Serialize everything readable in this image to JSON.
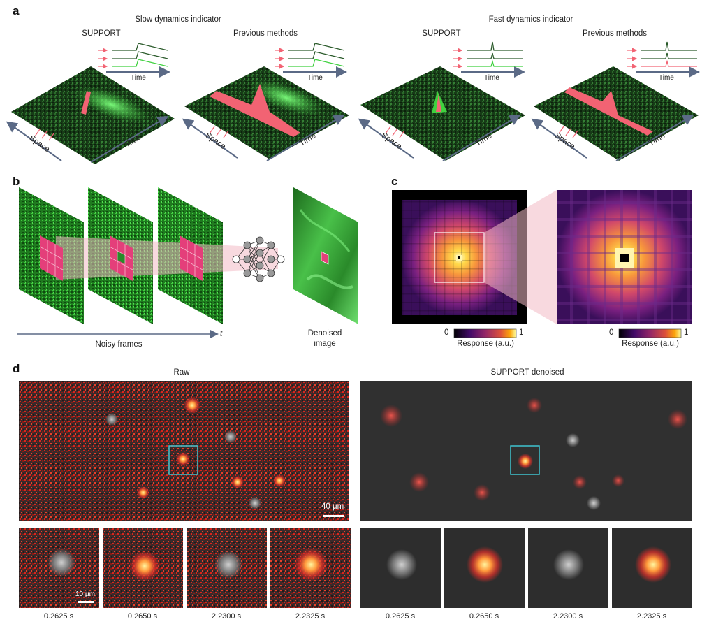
{
  "panels": {
    "a": {
      "letter": "a",
      "groups": [
        {
          "title": "Slow dynamics indicator",
          "left_label": "SUPPORT",
          "right_label": "Previous methods"
        },
        {
          "title": "Fast dynamics indicator",
          "left_label": "SUPPORT",
          "right_label": "Previous methods"
        }
      ],
      "axis_time": "Time",
      "axis_space": "Space",
      "trace_axis": "Time"
    },
    "b": {
      "letter": "b",
      "noisy_label": "Noisy frames",
      "t_label": "t",
      "denoised_label": "Denoised image"
    },
    "c": {
      "letter": "c",
      "colorbar_min": "0",
      "colorbar_max": "1",
      "colorbar_label": "Response (a.u.)"
    },
    "d": {
      "letter": "d",
      "raw_title": "Raw",
      "denoised_title": "SUPPORT denoised",
      "scale_large": "40 μm",
      "scale_small": "10 μm",
      "times": [
        "0.2625 s",
        "0.2650 s",
        "2.2300 s",
        "2.2325 s"
      ]
    }
  },
  "colors": {
    "green_signal": "#3fd13f",
    "red_signal": "#f26373",
    "arrow_gray": "#5b6a86",
    "cyan_box": "#3fc4d0",
    "pink_patch": "#e43f7a",
    "projection": "#f2b9c4"
  }
}
